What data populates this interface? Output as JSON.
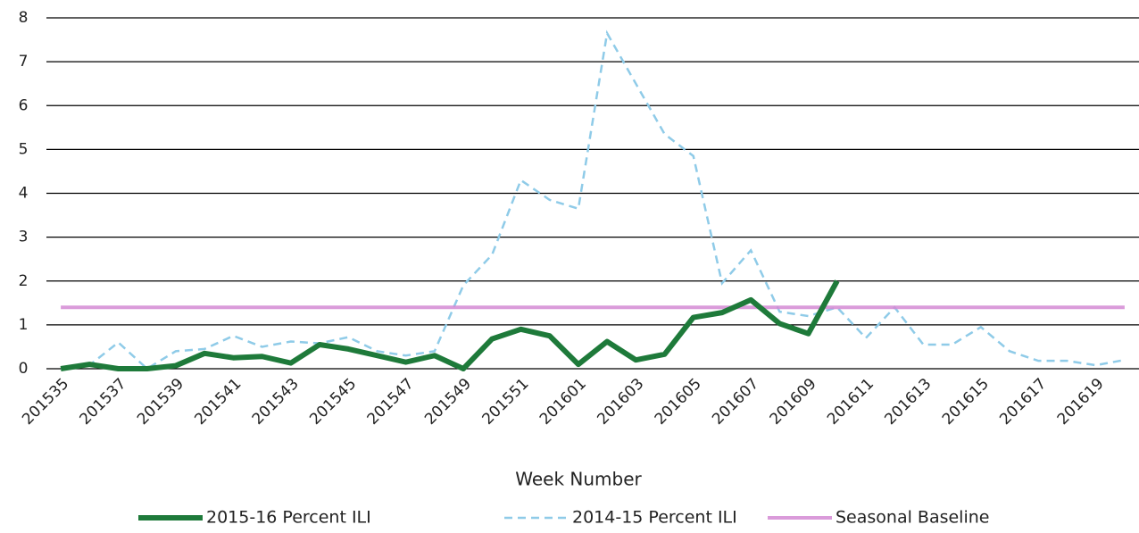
{
  "chart_data": {
    "type": "line",
    "x_label": "Week Number",
    "categories": [
      "201535",
      null,
      "201537",
      null,
      "201539",
      null,
      "201541",
      null,
      "201543",
      null,
      "201545",
      null,
      "201547",
      null,
      "201549",
      null,
      "201551",
      null,
      "201601",
      null,
      "201603",
      null,
      "201605",
      null,
      "201607",
      null,
      "201609",
      null,
      "201611",
      null,
      "201613",
      null,
      "201615",
      null,
      "201617",
      null,
      "201619",
      null
    ],
    "series": [
      {
        "name": "2015-16 Percent ILI",
        "color": "#1e7a3a",
        "style": "solid",
        "values": [
          0,
          0.1,
          0,
          0,
          0.07,
          0.35,
          0.25,
          0.28,
          0.13,
          0.55,
          0.45,
          0.3,
          0.15,
          0.3,
          0,
          0.68,
          0.9,
          0.75,
          0.1,
          0.62,
          0.2,
          0.33,
          1.17,
          1.28,
          1.57,
          1.03,
          0.8,
          2.0,
          null,
          null,
          null,
          null,
          null,
          null,
          null,
          null,
          null,
          null
        ]
      },
      {
        "name": "2014-15 Percent ILI",
        "color": "#8fcbe8",
        "style": "dashed",
        "values": [
          0,
          0.08,
          0.6,
          0,
          0.4,
          0.45,
          0.75,
          0.5,
          0.62,
          0.58,
          0.72,
          0.4,
          0.3,
          0.4,
          1.9,
          2.6,
          4.3,
          3.85,
          3.65,
          7.65,
          6.5,
          5.35,
          4.85,
          1.95,
          2.7,
          1.3,
          1.2,
          1.4,
          0.7,
          1.4,
          0.55,
          0.55,
          0.95,
          0.4,
          0.18,
          0.18,
          0.08,
          0.2
        ]
      },
      {
        "name": "Seasonal Baseline",
        "color": "#d48ad4",
        "style": "baseline",
        "values": [
          1.4,
          1.4,
          1.4,
          1.4,
          1.4,
          1.4,
          1.4,
          1.4,
          1.4,
          1.4,
          1.4,
          1.4,
          1.4,
          1.4,
          1.4,
          1.4,
          1.4,
          1.4,
          1.4,
          1.4,
          1.4,
          1.4,
          1.4,
          1.4,
          1.4,
          1.4,
          1.4,
          1.4,
          1.4,
          1.4,
          1.4,
          1.4,
          1.4,
          1.4,
          1.4,
          1.4,
          1.4,
          1.4
        ]
      }
    ],
    "ylim": [
      0,
      8
    ],
    "yticks": [
      0,
      1,
      2,
      3,
      4,
      5,
      6,
      7,
      8
    ],
    "grid": true,
    "legend": "bottom"
  }
}
